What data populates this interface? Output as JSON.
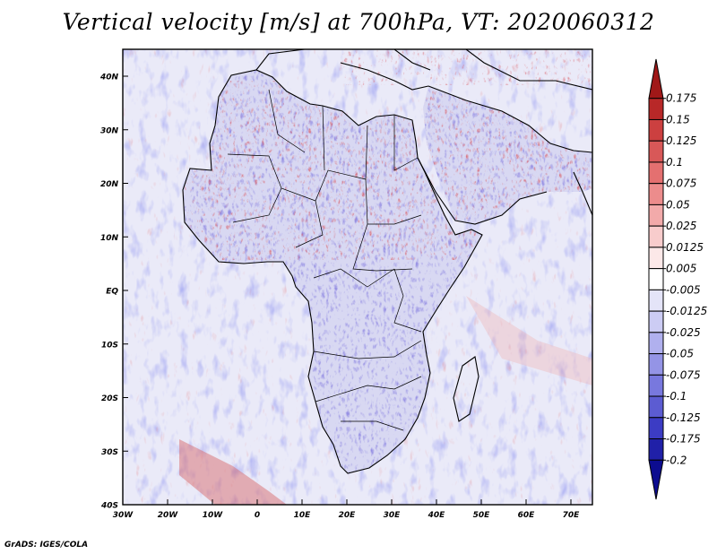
{
  "title": "Vertical velocity [m/s] at 700hPa, VT: 2020060312",
  "credit": "GrADS: IGES/COLA",
  "map": {
    "lat_labels": [
      "40N",
      "30N",
      "20N",
      "10N",
      "EQ",
      "10S",
      "20S",
      "30S",
      "40S"
    ],
    "lon_labels": [
      "30W",
      "20W",
      "10W",
      "0",
      "10E",
      "20E",
      "30E",
      "40E",
      "50E",
      "60E",
      "70E"
    ],
    "field": "vertical velocity",
    "level": "700hPa"
  },
  "colorbar": {
    "labels": [
      "0.175",
      "0.15",
      "0.125",
      "0.1",
      "0.075",
      "0.05",
      "0.025",
      "0.0125",
      "0.005",
      "-0.005",
      "-0.0125",
      "-0.025",
      "-0.05",
      "-0.075",
      "-0.1",
      "-0.125",
      "-0.175",
      "-0.2"
    ],
    "colors": [
      "#a01818",
      "#b82828",
      "#cc4040",
      "#d85858",
      "#e47070",
      "#ec8c8c",
      "#f2aaaa",
      "#f8cccc",
      "#fce8e8",
      "#ffffff",
      "#e4e4f8",
      "#ccccf4",
      "#b0b0ee",
      "#9494e6",
      "#7878de",
      "#5c5cd2",
      "#3c3cc4",
      "#2020a8",
      "#0c0c90"
    ]
  }
}
